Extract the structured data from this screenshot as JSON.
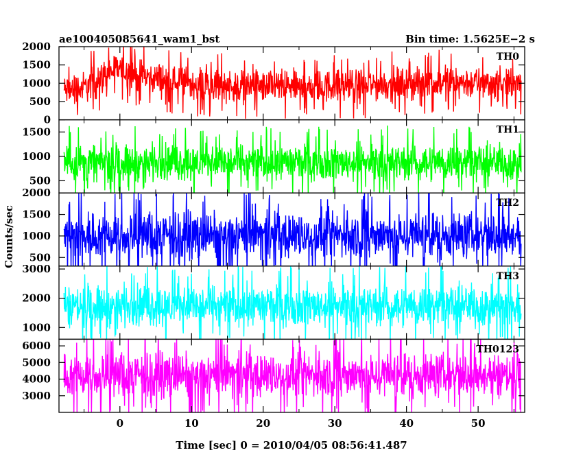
{
  "header": {
    "title": "ae100405085641_wam1_bst",
    "bin_time": "Bin time: 1.5625E−2 s"
  },
  "chart_data": {
    "type": "line",
    "ylabel": "Counts/sec",
    "xlabel": "Time [sec] 0 = 2010/04/05 08:56:41.487",
    "xlim": [
      -8.5,
      56.5
    ],
    "x_ticks": [
      0,
      10,
      20,
      30,
      40,
      50
    ],
    "x_tick_labels": [
      "0",
      "10",
      "20",
      "30",
      "40",
      "50"
    ],
    "data_x_range": [
      -7.8,
      56.0
    ],
    "panels": [
      {
        "name": "TH0",
        "color": "#ff0000",
        "ylim": [
          0,
          2000
        ],
        "y_ticks": [
          0,
          500,
          1000,
          1500,
          2000
        ],
        "y_tick_labels": [
          "0",
          "500",
          "1000",
          "1500",
          "2000"
        ],
        "mean_profile": {
          "x": [
            -8,
            -5,
            -3,
            -1,
            0,
            1,
            3,
            6,
            10,
            20,
            30,
            40,
            45,
            50,
            56
          ],
          "y": [
            780,
            880,
            1100,
            1350,
            1400,
            1300,
            1200,
            1100,
            1000,
            900,
            920,
            980,
            1050,
            1000,
            950
          ]
        },
        "noise_range": 500
      },
      {
        "name": "TH1",
        "color": "#00ff00",
        "ylim": [
          250,
          1750
        ],
        "y_ticks": [
          500,
          1000,
          1500
        ],
        "y_tick_labels": [
          "500",
          "1000",
          "1500"
        ],
        "mean_profile": {
          "x": [
            -8,
            56
          ],
          "y": [
            880,
            880
          ]
        },
        "noise_range": 420
      },
      {
        "name": "TH2",
        "color": "#0000ff",
        "ylim": [
          300,
          2000
        ],
        "y_ticks": [
          500,
          1000,
          1500,
          2000
        ],
        "y_tick_labels": [
          "500",
          "1000",
          "1500",
          "2000"
        ],
        "mean_profile": {
          "x": [
            -8,
            56
          ],
          "y": [
            1020,
            1020
          ]
        },
        "noise_range": 600
      },
      {
        "name": "TH3",
        "color": "#00ffff",
        "ylim": [
          600,
          3100
        ],
        "y_ticks": [
          1000,
          2000,
          3000
        ],
        "y_tick_labels": [
          "1000",
          "2000",
          "3000"
        ],
        "mean_profile": {
          "x": [
            -8,
            56
          ],
          "y": [
            1750,
            1750
          ]
        },
        "noise_range": 800
      },
      {
        "name": "TH0123",
        "color": "#ff00ff",
        "ylim": [
          2000,
          6400
        ],
        "y_ticks": [
          3000,
          4000,
          5000,
          6000
        ],
        "y_tick_labels": [
          "3000",
          "4000",
          "5000",
          "6000"
        ],
        "mean_profile": {
          "x": [
            -8,
            56
          ],
          "y": [
            4250,
            4250
          ]
        },
        "noise_range": 1500
      }
    ]
  }
}
